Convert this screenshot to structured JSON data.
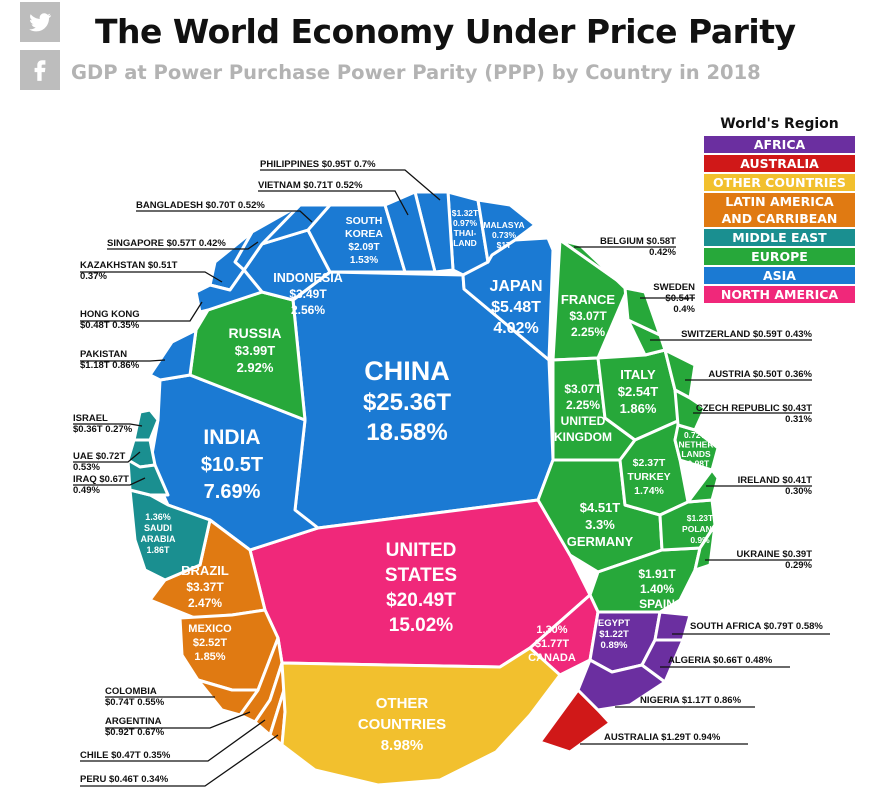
{
  "header": {
    "title": "The World Economy Under Price Parity",
    "subtitle": "GDP at Power Purchase Power Parity (PPP) by Country in 2018"
  },
  "social": [
    "twitter-icon",
    "facebook-icon"
  ],
  "legend": {
    "title": "World's Region",
    "items": [
      {
        "label": "AFRICA",
        "color": "#6b2fa0"
      },
      {
        "label": "AUSTRALIA",
        "color": "#d01818"
      },
      {
        "label": "OTHER COUNTRIES",
        "color": "#f2c02e"
      },
      {
        "label": "LATIN AMERICA AND CARRIBEAN",
        "color": "#e07a12"
      },
      {
        "label": "MIDDLE EAST",
        "color": "#1a8f90"
      },
      {
        "label": "EUROPE",
        "color": "#27a83a"
      },
      {
        "label": "ASIA",
        "color": "#1b7ad3"
      },
      {
        "label": "NORTH AMERICA",
        "color": "#f0287a"
      }
    ]
  },
  "chart_data": {
    "type": "treemap",
    "title": "The World Economy Under Price Parity",
    "subtitle": "GDP at Power Purchase Power Parity (PPP) by Country in 2018",
    "unit": "GDP (PPP), trillions USD; share of world GDP",
    "items": [
      {
        "name": "CHINA",
        "region": "ASIA",
        "value": "$25.36T",
        "share": "18.58%"
      },
      {
        "name": "UNITED STATES",
        "region": "NORTH AMERICA",
        "value": "$20.49T",
        "share": "15.02%"
      },
      {
        "name": "INDIA",
        "region": "ASIA",
        "value": "$10.5T",
        "share": "7.69%"
      },
      {
        "name": "JAPAN",
        "region": "ASIA",
        "value": "$5.48T",
        "share": "4.02%"
      },
      {
        "name": "GERMANY",
        "region": "EUROPE",
        "value": "$4.51T",
        "share": "3.3%"
      },
      {
        "name": "RUSSIA",
        "region": "EUROPE",
        "value": "$3.99T",
        "share": "2.92%"
      },
      {
        "name": "INDONESIA",
        "region": "ASIA",
        "value": "$3.49T",
        "share": "2.56%"
      },
      {
        "name": "BRAZIL",
        "region": "LATIN AMERICA AND CARRIBEAN",
        "value": "$3.37T",
        "share": "2.47%"
      },
      {
        "name": "FRANCE",
        "region": "EUROPE",
        "value": "$3.07T",
        "share": "2.25%"
      },
      {
        "name": "UNITED KINGDOM",
        "region": "EUROPE",
        "value": "$3.07T",
        "share": "2.25%"
      },
      {
        "name": "ITALY",
        "region": "EUROPE",
        "value": "$2.54T",
        "share": "1.86%"
      },
      {
        "name": "MEXICO",
        "region": "LATIN AMERICA AND CARRIBEAN",
        "value": "$2.52T",
        "share": "1.85%"
      },
      {
        "name": "TURKEY",
        "region": "EUROPE",
        "value": "$2.37T",
        "share": "1.74%"
      },
      {
        "name": "SOUTH KOREA",
        "region": "ASIA",
        "value": "$2.09T",
        "share": "1.53%"
      },
      {
        "name": "SPAIN",
        "region": "EUROPE",
        "value": "$1.91T",
        "share": "1.40%"
      },
      {
        "name": "SAUDI ARABIA",
        "region": "MIDDLE EAST",
        "value": "1.86T",
        "share": "1.36%"
      },
      {
        "name": "CANADA",
        "region": "NORTH AMERICA",
        "value": "$1.77T",
        "share": "1.30%"
      },
      {
        "name": "THAILAND",
        "region": "ASIA",
        "value": "$1.32T",
        "share": "0.97%"
      },
      {
        "name": "AUSTRALIA",
        "region": "AUSTRALIA",
        "value": "$1.29T",
        "share": "0.94%"
      },
      {
        "name": "POLAND",
        "region": "EUROPE",
        "value": "$1.23T",
        "share": "0.9%"
      },
      {
        "name": "EGYPT",
        "region": "AFRICA",
        "value": "$1.22T",
        "share": "0.89%"
      },
      {
        "name": "PAKISTAN",
        "region": "ASIA",
        "value": "$1.18T",
        "share": "0.86%"
      },
      {
        "name": "NIGERIA",
        "region": "AFRICA",
        "value": "$1.17T",
        "share": "0.86%"
      },
      {
        "name": "MALASYA",
        "region": "ASIA",
        "value": "$1T",
        "share": "0.73%"
      },
      {
        "name": "NETHERLANDS",
        "region": "EUROPE",
        "value": "$0.98T",
        "share": "0.72%"
      },
      {
        "name": "PHILIPPINES",
        "region": "ASIA",
        "value": "$0.95T",
        "share": "0.7%"
      },
      {
        "name": "ARGENTINA",
        "region": "LATIN AMERICA AND CARRIBEAN",
        "value": "$0.92T",
        "share": "0.67%"
      },
      {
        "name": "SOUTH AFRICA",
        "region": "AFRICA",
        "value": "$0.79T",
        "share": "0.58%"
      },
      {
        "name": "COLOMBIA",
        "region": "LATIN AMERICA AND CARRIBEAN",
        "value": "$0.74T",
        "share": "0.55%"
      },
      {
        "name": "UAE",
        "region": "MIDDLE EAST",
        "value": "$0.72T",
        "share": "0.53%"
      },
      {
        "name": "VIETNAM",
        "region": "ASIA",
        "value": "$0.71T",
        "share": "0.52%"
      },
      {
        "name": "BANGLADESH",
        "region": "ASIA",
        "value": "$0.70T",
        "share": "0.52%"
      },
      {
        "name": "IRAQ",
        "region": "MIDDLE EAST",
        "value": "$0.67T",
        "share": "0.49%"
      },
      {
        "name": "ALGERIA",
        "region": "AFRICA",
        "value": "$0.66T",
        "share": "0.48%"
      },
      {
        "name": "SWITZERLAND",
        "region": "EUROPE",
        "value": "$0.59T",
        "share": "0.43%"
      },
      {
        "name": "BELGIUM",
        "region": "EUROPE",
        "value": "$0.58T",
        "share": "0.42%"
      },
      {
        "name": "SINGAPORE",
        "region": "ASIA",
        "value": "$0.57T",
        "share": "0.42%"
      },
      {
        "name": "SWEDEN",
        "region": "EUROPE",
        "value": "$0.54T",
        "share": "0.4%"
      },
      {
        "name": "KAZAKHSTAN",
        "region": "ASIA",
        "value": "$0.51T",
        "share": "0.37%"
      },
      {
        "name": "AUSTRIA",
        "region": "EUROPE",
        "value": "$0.50T",
        "share": "0.36%"
      },
      {
        "name": "HONG KONG",
        "region": "ASIA",
        "value": "$0.48T",
        "share": "0.35%"
      },
      {
        "name": "CHILE",
        "region": "LATIN AMERICA AND CARRIBEAN",
        "value": "$0.47T",
        "share": "0.35%"
      },
      {
        "name": "PERU",
        "region": "LATIN AMERICA AND CARRIBEAN",
        "value": "$0.46T",
        "share": "0.34%"
      },
      {
        "name": "CZECH REPUBLIC",
        "region": "EUROPE",
        "value": "$0.43T",
        "share": "0.31%"
      },
      {
        "name": "IRELAND",
        "region": "EUROPE",
        "value": "$0.41T",
        "share": "0.30%"
      },
      {
        "name": "UKRAINE",
        "region": "EUROPE",
        "value": "$0.39T",
        "share": "0.29%"
      },
      {
        "name": "ISRAEL",
        "region": "MIDDLE EAST",
        "value": "$0.36T",
        "share": "0.27%"
      },
      {
        "name": "OTHER COUNTRIES",
        "region": "OTHER COUNTRIES",
        "value": "",
        "share": "8.98%"
      }
    ]
  }
}
